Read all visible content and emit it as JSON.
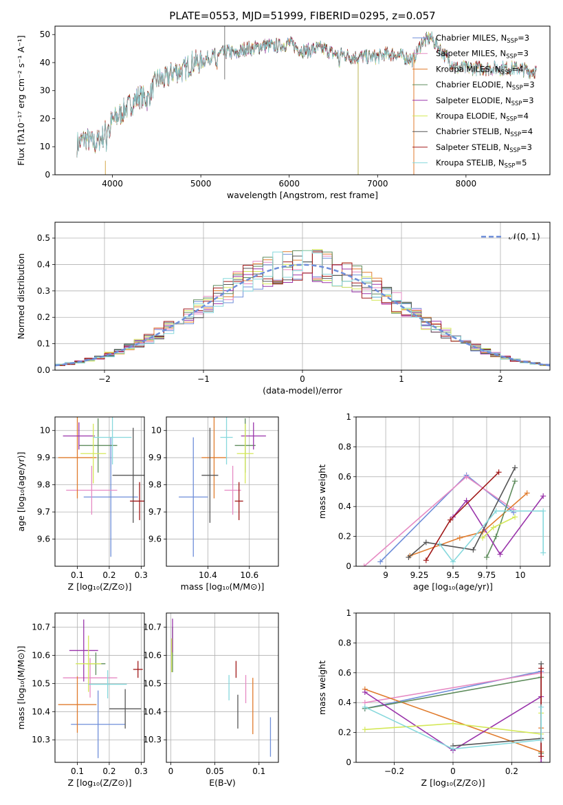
{
  "figure": {
    "title": "PLATE=0553, MJD=51999, FIBERID=0295, z=0.057"
  },
  "series": [
    {
      "name": "Chabrier MILES, N",
      "sub": "SSP",
      "tail": "=3",
      "color": "#6e8ed9"
    },
    {
      "name": "Salpeter MILES, N",
      "sub": "SSP",
      "tail": "=3",
      "color": "#e68ac3"
    },
    {
      "name": "Kroupa MILES, N",
      "sub": "SSP",
      "tail": "=4",
      "color": "#e07b2c"
    },
    {
      "name": "Chabrier ELODIE, N",
      "sub": "SSP",
      "tail": "=3",
      "color": "#5e8c5c"
    },
    {
      "name": "Salpeter ELODIE, N",
      "sub": "SSP",
      "tail": "=3",
      "color": "#9933aa"
    },
    {
      "name": "Kroupa ELODIE, N",
      "sub": "SSP",
      "tail": "=4",
      "color": "#d4e858"
    },
    {
      "name": "Chabrier STELIB, N",
      "sub": "SSP",
      "tail": "=4",
      "color": "#555555"
    },
    {
      "name": "Salpeter STELIB, N",
      "sub": "SSP",
      "tail": "=3",
      "color": "#a01818"
    },
    {
      "name": "Kroupa STELIB, N",
      "sub": "SSP",
      "tail": "=5",
      "color": "#86d8dc"
    }
  ],
  "chart_data": [
    {
      "id": "spectrum",
      "type": "line",
      "xlabel": "wavelength [Angstrom, rest frame]",
      "ylabel": "Flux [fλ10⁻¹⁷ erg cm⁻² s⁻¹ A⁻¹]",
      "xlim": [
        3350,
        8950
      ],
      "ylim": [
        0,
        53
      ],
      "xticks": [
        4000,
        5000,
        6000,
        7000,
        8000
      ],
      "yticks": [
        0,
        10,
        20,
        30,
        40,
        50
      ],
      "x": [
        3600,
        3700,
        3800,
        3900,
        3950,
        4000,
        4100,
        4200,
        4300,
        4400,
        4500,
        4600,
        4700,
        4800,
        4900,
        5000,
        5100,
        5200,
        5300,
        5400,
        5500,
        5600,
        5700,
        5800,
        5900,
        6000,
        6100,
        6200,
        6300,
        6400,
        6500,
        6600,
        6700,
        6800,
        6900,
        7000,
        7100,
        7200,
        7300,
        7400,
        7500,
        7600,
        7700,
        7800,
        7900,
        8000,
        8100,
        8200,
        8300,
        8400,
        8500,
        8600,
        8700,
        8800
      ],
      "y": [
        11,
        13,
        11,
        14,
        18,
        19,
        22,
        25,
        28,
        27,
        34,
        34,
        37,
        37,
        40,
        40,
        42,
        43,
        44,
        43,
        45,
        45,
        46,
        46,
        46,
        47,
        45,
        44,
        45,
        45,
        43,
        43,
        42,
        42,
        42,
        42,
        43,
        43,
        42,
        41,
        47,
        49,
        45,
        41,
        38,
        38,
        38,
        38,
        38,
        38,
        38,
        38,
        37,
        37
      ],
      "grid": false,
      "legend": "top-right"
    },
    {
      "id": "residuals",
      "type": "histogram",
      "xlabel": "(data-model)/error",
      "ylabel": "Normed distribution",
      "xlim": [
        -2.5,
        2.5
      ],
      "ylim": [
        0,
        0.56
      ],
      "xticks": [
        -2,
        -1,
        0,
        1,
        2
      ],
      "yticks": [
        0.0,
        0.1,
        0.2,
        0.3,
        0.4,
        0.5
      ],
      "bin_width": 0.1,
      "reference_label": "𝒩(0, 1)",
      "grid": true,
      "legend": "top-right"
    },
    {
      "id": "age_vs_Z",
      "type": "scatter",
      "xlabel": "Z [log₁₀(Z/Z⊙)]",
      "ylabel": "age  [log₁₀(age/yr)]",
      "xlim": [
        0.03,
        0.31
      ],
      "ylim": [
        9.5,
        10.05
      ],
      "xticks": [
        0.1,
        0.2,
        0.3
      ],
      "yticks": [
        9.6,
        9.7,
        9.8,
        9.9,
        10.0
      ],
      "points": [
        {
          "x": 0.205,
          "y": 9.755,
          "ex": 0.085,
          "ey": 0.22
        },
        {
          "x": 0.145,
          "y": 9.78,
          "ex": 0.08,
          "ey": 0.09
        },
        {
          "x": 0.1,
          "y": 9.9,
          "ex": 0.06,
          "ey": 0.15
        },
        {
          "x": 0.165,
          "y": 9.945,
          "ex": 0.06,
          "ey": 0.1
        },
        {
          "x": 0.105,
          "y": 9.98,
          "ex": 0.05,
          "ey": 0.05
        },
        {
          "x": 0.15,
          "y": 9.915,
          "ex": 0.04,
          "ey": 0.11
        },
        {
          "x": 0.275,
          "y": 9.835,
          "ex": 0.065,
          "ey": 0.175
        },
        {
          "x": 0.295,
          "y": 9.74,
          "ex": 0.03,
          "ey": 0.07
        },
        {
          "x": 0.21,
          "y": 9.975,
          "ex": 0.06,
          "ey": 0.1
        }
      ],
      "grid": true
    },
    {
      "id": "age_vs_mass",
      "type": "scatter",
      "xlabel": "mass [log₁₀(M/M⊙)]",
      "ylabel": "",
      "xlim": [
        10.2,
        10.74
      ],
      "ylim": [
        9.5,
        10.05
      ],
      "xticks": [
        10.4,
        10.6
      ],
      "yticks": [
        9.6,
        9.7,
        9.8,
        9.9,
        10.0
      ],
      "points": [
        {
          "x": 10.33,
          "y": 9.755,
          "ex": 0.07,
          "ey": 0.22
        },
        {
          "x": 10.52,
          "y": 9.78,
          "ex": 0.04,
          "ey": 0.09
        },
        {
          "x": 10.43,
          "y": 9.9,
          "ex": 0.06,
          "ey": 0.15
        },
        {
          "x": 10.58,
          "y": 9.945,
          "ex": 0.05,
          "ey": 0.1
        },
        {
          "x": 10.62,
          "y": 9.98,
          "ex": 0.06,
          "ey": 0.05
        },
        {
          "x": 10.58,
          "y": 9.915,
          "ex": 0.04,
          "ey": 0.11
        },
        {
          "x": 10.41,
          "y": 9.835,
          "ex": 0.04,
          "ey": 0.175
        },
        {
          "x": 10.55,
          "y": 9.74,
          "ex": 0.02,
          "ey": 0.07
        },
        {
          "x": 10.49,
          "y": 9.975,
          "ex": 0.03,
          "ey": 0.1
        }
      ],
      "grid": true
    },
    {
      "id": "mass_weight_vs_age",
      "type": "line",
      "xlabel": "age  [log₁₀(age/yr)]",
      "ylabel": "mass weight",
      "xlim": [
        8.78,
        10.22
      ],
      "ylim": [
        0,
        1.0
      ],
      "xticks": [
        9.0,
        9.25,
        9.5,
        9.75,
        10.0
      ],
      "yticks": [
        0.0,
        0.2,
        0.4,
        0.6,
        0.8,
        1.0
      ],
      "series": [
        {
          "x": [
            8.96,
            9.6,
            9.95
          ],
          "y": [
            0.03,
            0.61,
            0.36
          ]
        },
        {
          "x": [
            8.84,
            9.6,
            9.95
          ],
          "y": [
            0.0,
            0.6,
            0.38
          ]
        },
        {
          "x": [
            9.18,
            9.55,
            9.72,
            10.05
          ],
          "y": [
            0.07,
            0.19,
            0.23,
            0.49
          ]
        },
        {
          "x": [
            9.75,
            9.82,
            9.96
          ],
          "y": [
            0.06,
            0.2,
            0.57
          ]
        },
        {
          "x": [
            9.5,
            9.6,
            9.85,
            10.17
          ],
          "y": [
            0.33,
            0.44,
            0.08,
            0.47
          ]
        },
        {
          "x": [
            9.72,
            9.8,
            9.96
          ],
          "y": [
            0.19,
            0.26,
            0.33
          ]
        },
        {
          "x": [
            9.17,
            9.3,
            9.65,
            9.96
          ],
          "y": [
            0.06,
            0.16,
            0.11,
            0.66
          ]
        },
        {
          "x": [
            9.3,
            9.48,
            9.84
          ],
          "y": [
            0.04,
            0.31,
            0.63
          ]
        },
        {
          "x": [
            9.4,
            9.5,
            9.82,
            10.17,
            10.17
          ],
          "y": [
            0.15,
            0.03,
            0.37,
            0.37,
            0.09
          ]
        }
      ],
      "grid": true
    },
    {
      "id": "mass_vs_Z",
      "type": "scatter",
      "xlabel": "Z [log₁₀(Z/Z⊙)]",
      "ylabel": "mass [log₁₀(M/M⊙)]",
      "xlim": [
        0.03,
        0.31
      ],
      "ylim": [
        10.22,
        10.75
      ],
      "xticks": [
        0.1,
        0.2,
        0.3
      ],
      "yticks": [
        10.3,
        10.4,
        10.5,
        10.6,
        10.7
      ],
      "points": [
        {
          "x": 0.165,
          "y": 10.355,
          "ex": 0.085,
          "ey": 0.12
        },
        {
          "x": 0.14,
          "y": 10.52,
          "ex": 0.085,
          "ey": 0.07
        },
        {
          "x": 0.1,
          "y": 10.425,
          "ex": 0.06,
          "ey": 0.1
        },
        {
          "x": 0.158,
          "y": 10.57,
          "ex": 0.03,
          "ey": 0.04
        },
        {
          "x": 0.12,
          "y": 10.617,
          "ex": 0.045,
          "ey": 0.11
        },
        {
          "x": 0.135,
          "y": 10.57,
          "ex": 0.04,
          "ey": 0.1
        },
        {
          "x": 0.25,
          "y": 10.41,
          "ex": 0.05,
          "ey": 0.07
        },
        {
          "x": 0.29,
          "y": 10.55,
          "ex": 0.015,
          "ey": 0.03
        },
        {
          "x": 0.195,
          "y": 10.497,
          "ex": 0.06,
          "ey": 0.05
        }
      ],
      "grid": true
    },
    {
      "id": "mass_vs_ebv",
      "type": "scatter",
      "xlabel": "E(B-V)",
      "ylabel": "",
      "xlim": [
        -0.005,
        0.122
      ],
      "ylim": [
        10.22,
        10.75
      ],
      "xticks": [
        0.0,
        0.05,
        0.1
      ],
      "yticks": [
        10.3,
        10.4,
        10.5,
        10.6,
        10.7
      ],
      "points": [
        {
          "x": 0.113,
          "y": 10.31,
          "ex": 0,
          "ey": 0.07
        },
        {
          "x": 0.085,
          "y": 10.48,
          "ex": 0,
          "ey": 0.05
        },
        {
          "x": 0.093,
          "y": 10.42,
          "ex": 0,
          "ey": 0.1
        },
        {
          "x": 0.002,
          "y": 10.62,
          "ex": 0,
          "ey": 0.08
        },
        {
          "x": 0.002,
          "y": 10.67,
          "ex": 0,
          "ey": 0.06
        },
        {
          "x": 0.001,
          "y": 10.6,
          "ex": 0,
          "ey": 0.06
        },
        {
          "x": 0.076,
          "y": 10.4,
          "ex": 0,
          "ey": 0.06
        },
        {
          "x": 0.074,
          "y": 10.55,
          "ex": 0,
          "ey": 0.03
        },
        {
          "x": 0.066,
          "y": 10.485,
          "ex": 0,
          "ey": 0.045
        }
      ],
      "grid": true
    },
    {
      "id": "mass_weight_vs_Z",
      "type": "line",
      "xlabel": "Z [log₁₀(Z/Z⊙)]",
      "ylabel": "mass weight",
      "xlim": [
        -0.33,
        0.33
      ],
      "ylim": [
        0,
        1.0
      ],
      "xticks": [
        -0.2,
        0.0,
        0.2
      ],
      "yticks": [
        0.0,
        0.2,
        0.4,
        0.6,
        0.8,
        1.0
      ],
      "series": [
        {
          "x": [
            -0.3,
            0.3
          ],
          "y": [
            0.36,
            0.61
          ]
        },
        {
          "x": [
            -0.3,
            0.3,
            0.3
          ],
          "y": [
            0.4,
            0.6,
            0.0
          ]
        },
        {
          "x": [
            -0.3,
            0.3,
            0.3
          ],
          "y": [
            0.49,
            0.07,
            0.23
          ]
        },
        {
          "x": [
            -0.3,
            0.3,
            0.3
          ],
          "y": [
            0.36,
            0.57,
            0.06
          ]
        },
        {
          "x": [
            -0.3,
            0.0,
            0.3,
            0.3
          ],
          "y": [
            0.47,
            0.08,
            0.44,
            0.0
          ]
        },
        {
          "x": [
            -0.3,
            0.0,
            0.3,
            0.3
          ],
          "y": [
            0.22,
            0.26,
            0.19,
            0.33
          ]
        },
        {
          "x": [
            0.0,
            0.3,
            0.3
          ],
          "y": [
            0.11,
            0.16,
            0.66
          ]
        },
        {
          "x": [
            0.3,
            0.3
          ],
          "y": [
            0.04,
            0.63
          ]
        },
        {
          "x": [
            -0.3,
            0.0,
            0.3,
            0.3
          ],
          "y": [
            0.37,
            0.09,
            0.15,
            0.37
          ]
        }
      ],
      "grid": true
    }
  ]
}
